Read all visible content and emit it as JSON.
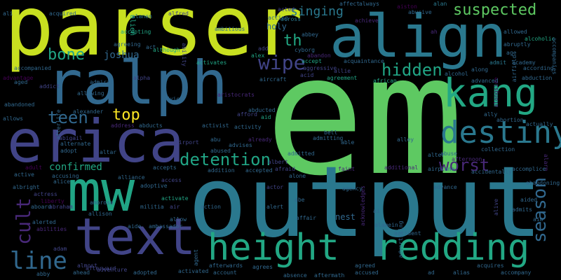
{
  "palette": {
    "background": "#000000",
    "lime": "#c8e020",
    "green": "#5ec962",
    "teal": "#2a788e",
    "cyan_green": "#21a585",
    "sea_green": "#22a884",
    "blue": "#31688e",
    "indigo": "#414487",
    "purple": "#482878",
    "dark_purple": "#440154",
    "yellow": "#fde725"
  },
  "words": [
    {
      "id": "em",
      "text": "em",
      "color": "#5ec962"
    },
    {
      "id": "output",
      "text": "output",
      "color": "#2a788e"
    },
    {
      "id": "parser",
      "text": "parser",
      "color": "#c8e020"
    },
    {
      "id": "align",
      "text": "align",
      "color": "#2a788e"
    },
    {
      "id": "ralph",
      "text": "ralph",
      "color": "#31688e"
    },
    {
      "id": "erica",
      "text": "erica",
      "color": "#414487"
    },
    {
      "id": "mw",
      "text": "mw",
      "color": "#21a585"
    },
    {
      "id": "text",
      "text": "text",
      "color": "#414487"
    },
    {
      "id": "height",
      "text": "height",
      "color": "#22a884"
    },
    {
      "id": "redding",
      "text": "redding",
      "color": "#22a884"
    },
    {
      "id": "kang",
      "text": "kang",
      "color": "#22a884"
    },
    {
      "id": "destiny",
      "text": "destiny",
      "color": "#2a788e"
    },
    {
      "id": "season",
      "text": "season",
      "color": "#31688e"
    },
    {
      "id": "cult",
      "text": "cult",
      "color": "#482878"
    },
    {
      "id": "line",
      "text": "line",
      "color": "#31688e"
    },
    {
      "id": "suspected",
      "text": "suspected",
      "color": "#5ec962"
    },
    {
      "id": "hidden",
      "text": "hidden",
      "color": "#21a585"
    },
    {
      "id": "detention",
      "text": "detention",
      "color": "#21a585"
    },
    {
      "id": "worst",
      "text": "worst",
      "color": "#482878"
    },
    {
      "id": "teen",
      "text": "teen",
      "color": "#31688e"
    },
    {
      "id": "top",
      "text": "top",
      "color": "#fde725"
    },
    {
      "id": "bone",
      "text": "bone",
      "color": "#21a585"
    },
    {
      "id": "wipe",
      "text": "wipe",
      "color": "#414487"
    },
    {
      "id": "singing",
      "text": "singing",
      "color": "#2a788e"
    },
    {
      "id": "th",
      "text": "th",
      "color": "#22a884"
    },
    {
      "id": "confirmed",
      "text": "confirmed",
      "color": "#22a884"
    },
    {
      "id": "joshua",
      "text": "joshua",
      "color": "#31688e"
    },
    {
      "id": "holy",
      "text": "holy",
      "color": "#31688e"
    },
    {
      "id": "alien",
      "text": "alien",
      "color": "#21a585"
    },
    {
      "id": "alanen",
      "text": "alanen",
      "color": "#2a788e"
    },
    {
      "id": "across",
      "text": "across",
      "color": "#2a788e"
    },
    {
      "id": "affect",
      "text": "affect",
      "color": "#31688e"
    },
    {
      "id": "always",
      "text": "always",
      "color": "#31688e"
    },
    {
      "id": "alan",
      "text": "alan",
      "color": "#2a788e"
    },
    {
      "id": "aiston",
      "text": "aiston",
      "color": "#440154"
    },
    {
      "id": "acted",
      "text": "acted",
      "color": "#414487"
    },
    {
      "id": "acting",
      "text": "acting",
      "color": "#31688e"
    },
    {
      "id": "achieve",
      "text": "achieve",
      "color": "#482878"
    },
    {
      "id": "abusive",
      "text": "abusive",
      "color": "#31688e"
    },
    {
      "id": "ah",
      "text": "ah",
      "color": "#482878"
    },
    {
      "id": "ali",
      "text": "ali",
      "color": "#31688e"
    },
    {
      "id": "acquired",
      "text": "acquired",
      "color": "#31688e"
    },
    {
      "id": "alfred",
      "text": "alfred",
      "color": "#414487"
    },
    {
      "id": "accepting",
      "text": "accepting",
      "color": "#21a585"
    },
    {
      "id": "ambitious",
      "text": "ambitious",
      "color": "#31688e"
    },
    {
      "id": "abbey",
      "text": "abbey",
      "color": "#31688e"
    },
    {
      "id": "allowed",
      "text": "allowed",
      "color": "#31688e"
    },
    {
      "id": "alcoholic",
      "text": "alcoholic",
      "color": "#22a884"
    },
    {
      "id": "abruptly",
      "text": "abruptly",
      "color": "#31688e"
    },
    {
      "id": "accompanies",
      "text": "accompanies",
      "color": "#31688e"
    },
    {
      "id": "add",
      "text": "add",
      "color": "#414487"
    },
    {
      "id": "cyborg",
      "text": "cyborg",
      "color": "#31688e"
    },
    {
      "id": "agreeing",
      "text": "agreeing",
      "color": "#31688e"
    },
    {
      "id": "act",
      "text": "act",
      "color": "#31688e"
    },
    {
      "id": "although",
      "text": "although",
      "color": "#22a884"
    },
    {
      "id": "ability",
      "text": "ability",
      "color": "#414487"
    },
    {
      "id": "alex",
      "text": "alex",
      "color": "#21a585"
    },
    {
      "id": "abandon",
      "text": "abandon",
      "color": "#482878"
    },
    {
      "id": "age",
      "text": "age",
      "color": "#31688e"
    },
    {
      "id": "accept",
      "text": "accept",
      "color": "#21a585"
    },
    {
      "id": "acquaintance",
      "text": "acquaintance",
      "color": "#31688e"
    },
    {
      "id": "admit",
      "text": "admit",
      "color": "#2a788e"
    },
    {
      "id": "academy",
      "text": "academy",
      "color": "#31688e"
    },
    {
      "id": "accompanied",
      "text": "accompanied",
      "color": "#31688e"
    },
    {
      "id": "advantage",
      "text": "advantage",
      "color": "#440154"
    },
    {
      "id": "aged",
      "text": "aged",
      "color": "#31688e"
    },
    {
      "id": "alpha",
      "text": "alpha",
      "color": "#414487"
    },
    {
      "id": "addict",
      "text": "addict",
      "color": "#414487"
    },
    {
      "id": "admiral",
      "text": "admiral",
      "color": "#31688e"
    },
    {
      "id": "activates",
      "text": "activates",
      "color": "#21a585"
    },
    {
      "id": "aggressive",
      "text": "aggressive",
      "color": "#414487"
    },
    {
      "id": "allie",
      "text": "allie",
      "color": "#414487"
    },
    {
      "id": "along",
      "text": "along",
      "color": "#31688e"
    },
    {
      "id": "airfield",
      "text": "airfield",
      "color": "#31688e"
    },
    {
      "id": "according",
      "text": "according",
      "color": "#31688e"
    },
    {
      "id": "advanced",
      "text": "advanced",
      "color": "#31688e"
    },
    {
      "id": "alcohol",
      "text": "alcohol",
      "color": "#31688e"
    },
    {
      "id": "acid",
      "text": "acid",
      "color": "#414487"
    },
    {
      "id": "agreement",
      "text": "agreement",
      "color": "#21a585"
    },
    {
      "id": "aircraft",
      "text": "aircraft",
      "color": "#31688e"
    },
    {
      "id": "abduction",
      "text": "abduction",
      "color": "#31688e"
    },
    {
      "id": "alongside",
      "text": "alongside",
      "color": "#440154"
    },
    {
      "id": "african",
      "text": "african",
      "color": "#21a585"
    },
    {
      "id": "allowing",
      "text": "allowing",
      "color": "#31688e"
    },
    {
      "id": "advice",
      "text": "advice",
      "color": "#31688e"
    },
    {
      "id": "abandoned",
      "text": "abandoned",
      "color": "#31688e"
    },
    {
      "id": "alexander",
      "text": "alexander",
      "color": "#31688e"
    },
    {
      "id": "aristocrats",
      "text": "aristocrats",
      "color": "#482878"
    },
    {
      "id": "abducted",
      "text": "abducted",
      "color": "#31688e"
    },
    {
      "id": "afford",
      "text": "afford",
      "color": "#414487"
    },
    {
      "id": "aid",
      "text": "aid",
      "color": "#21a585"
    },
    {
      "id": "ally",
      "text": "ally",
      "color": "#31688e"
    },
    {
      "id": "allows",
      "text": "allows",
      "color": "#31688e"
    },
    {
      "id": "afterlife",
      "text": "afterlife",
      "color": "#31688e"
    },
    {
      "id": "address",
      "text": "address",
      "color": "#482878"
    },
    {
      "id": "abducts",
      "text": "abducts",
      "color": "#31688e"
    },
    {
      "id": "activity",
      "text": "activity",
      "color": "#31688e"
    },
    {
      "id": "activist",
      "text": "activist",
      "color": "#31688e"
    },
    {
      "id": "already",
      "text": "already",
      "color": "#482878"
    },
    {
      "id": "bell",
      "text": "bell",
      "color": "#31688e"
    },
    {
      "id": "abortion",
      "text": "abortion",
      "color": "#31688e"
    },
    {
      "id": "actually",
      "text": "actually",
      "color": "#31688e"
    },
    {
      "id": "abigail",
      "text": "abigail",
      "color": "#414487"
    },
    {
      "id": "alternate",
      "text": "alternate",
      "color": "#31688e"
    },
    {
      "id": "adopt",
      "text": "adopt",
      "color": "#31688e"
    },
    {
      "id": "abu",
      "text": "abu",
      "color": "#31688e"
    },
    {
      "id": "advises",
      "text": "advises",
      "color": "#31688e"
    },
    {
      "id": "admitting",
      "text": "admitting",
      "color": "#31688e"
    },
    {
      "id": "able",
      "text": "able",
      "color": "#31688e"
    },
    {
      "id": "alley",
      "text": "alley",
      "color": "#31688e"
    },
    {
      "id": "airport",
      "text": "airport",
      "color": "#414487"
    },
    {
      "id": "admitted",
      "text": "admitted",
      "color": "#31688e"
    },
    {
      "id": "abuse",
      "text": "abuse",
      "color": "#31688e"
    },
    {
      "id": "alter",
      "text": "alter",
      "color": "#31688e"
    },
    {
      "id": "altar",
      "text": "altar",
      "color": "#31688e"
    },
    {
      "id": "abused",
      "text": "abused",
      "color": "#31688e"
    },
    {
      "id": "afternoon",
      "text": "afternoon",
      "color": "#482878"
    },
    {
      "id": "alarm",
      "text": "alarm",
      "color": "#482878"
    },
    {
      "id": "collection",
      "text": "collection",
      "color": "#31688e"
    },
    {
      "id": "albert",
      "text": "albert",
      "color": "#414487"
    },
    {
      "id": "adult",
      "text": "adult",
      "color": "#440154"
    },
    {
      "id": "accepts",
      "text": "accepts",
      "color": "#31688e"
    },
    {
      "id": "addition",
      "text": "addition",
      "color": "#31688e"
    },
    {
      "id": "accepted",
      "text": "accepted",
      "color": "#31688e"
    },
    {
      "id": "afraid",
      "text": "afraid",
      "color": "#414487"
    },
    {
      "id": "additional",
      "text": "additional",
      "color": "#482878"
    },
    {
      "id": "airplane",
      "text": "airplane",
      "color": "#31688e"
    },
    {
      "id": "accidentally",
      "text": "accidentally",
      "color": "#31688e"
    },
    {
      "id": "accomplice",
      "text": "accomplice",
      "color": "#31688e"
    },
    {
      "id": "active",
      "text": "active",
      "color": "#31688e"
    },
    {
      "id": "accusing",
      "text": "accusing",
      "color": "#31688e"
    },
    {
      "id": "alliance",
      "text": "alliance",
      "color": "#31688e"
    },
    {
      "id": "access",
      "text": "access",
      "color": "#414487"
    },
    {
      "id": "alone",
      "text": "alone",
      "color": "#31688e"
    },
    {
      "id": "faint",
      "text": "faint",
      "color": "#482878"
    },
    {
      "id": "albright",
      "text": "albright",
      "color": "#31688e"
    },
    {
      "id": "alice",
      "text": "alice",
      "color": "#31688e"
    },
    {
      "id": "actor",
      "text": "actor",
      "color": "#414487"
    },
    {
      "id": "agency",
      "text": "agency",
      "color": "#31688e"
    },
    {
      "id": "advance",
      "text": "advance",
      "color": "#31688e"
    },
    {
      "id": "abandoning",
      "text": "abandoning",
      "color": "#31688e"
    },
    {
      "id": "actress",
      "text": "actress",
      "color": "#414487"
    },
    {
      "id": "adoptive",
      "text": "adoptive",
      "color": "#31688e"
    },
    {
      "id": "activate",
      "text": "activate",
      "color": "#21a585"
    },
    {
      "id": "abe",
      "text": "abe",
      "color": "#31688e"
    },
    {
      "id": "aided",
      "text": "aided",
      "color": "#31688e"
    },
    {
      "id": "liberty",
      "text": "liberty",
      "color": "#440154"
    },
    {
      "id": "aboard",
      "text": "aboard",
      "color": "#31688e"
    },
    {
      "id": "abraham",
      "text": "abraham",
      "color": "#414487"
    },
    {
      "id": "ambrose",
      "text": "ambrose",
      "color": "#31688e"
    },
    {
      "id": "militia",
      "text": "militia",
      "color": "#31688e"
    },
    {
      "id": "air",
      "text": "air",
      "color": "#414487"
    },
    {
      "id": "action",
      "text": "action",
      "color": "#31688e"
    },
    {
      "id": "alert",
      "text": "alert",
      "color": "#31688e"
    },
    {
      "id": "acknowledges",
      "text": "acknowledges",
      "color": "#482878"
    },
    {
      "id": "ai",
      "text": "ai",
      "color": "#31688e"
    },
    {
      "id": "alive",
      "text": "alive",
      "color": "#414487"
    },
    {
      "id": "admits",
      "text": "admits",
      "color": "#31688e"
    },
    {
      "id": "aim",
      "text": "aim",
      "color": "#31688e"
    },
    {
      "id": "allison",
      "text": "allison",
      "color": "#31688e"
    },
    {
      "id": "aide",
      "text": "aide",
      "color": "#31688e"
    },
    {
      "id": "ambassador",
      "text": "ambassador",
      "color": "#31688e"
    },
    {
      "id": "allow",
      "text": "allow",
      "color": "#31688e"
    },
    {
      "id": "affair",
      "text": "affair",
      "color": "#31688e"
    },
    {
      "id": "nest",
      "text": "nest",
      "color": "#31688e"
    },
    {
      "id": "alerted",
      "text": "alerted",
      "color": "#31688e"
    },
    {
      "id": "alamein",
      "text": "alamein",
      "color": "#31688e"
    },
    {
      "id": "accident",
      "text": "accident",
      "color": "#31688e"
    },
    {
      "id": "advertising",
      "text": "advertising",
      "color": "#31688e"
    },
    {
      "id": "abilities",
      "text": "abilities",
      "color": "#482878"
    },
    {
      "id": "adam",
      "text": "adam",
      "color": "#414487"
    },
    {
      "id": "afterward",
      "text": "afterward",
      "color": "#414487"
    },
    {
      "id": "almost",
      "text": "almost",
      "color": "#414487"
    },
    {
      "id": "adventure",
      "text": "adventure",
      "color": "#414487"
    },
    {
      "id": "activated",
      "text": "activated",
      "color": "#31688e"
    },
    {
      "id": "agent",
      "text": "agent",
      "color": "#31688e"
    },
    {
      "id": "afterwards",
      "text": "afterwards",
      "color": "#31688e"
    },
    {
      "id": "agrees",
      "text": "agrees",
      "color": "#31688e"
    },
    {
      "id": "agreed",
      "text": "agreed",
      "color": "#31688e"
    },
    {
      "id": "alias",
      "text": "alias",
      "color": "#31688e"
    },
    {
      "id": "acquires",
      "text": "acquires",
      "color": "#31688e"
    },
    {
      "id": "ahead",
      "text": "ahead",
      "color": "#31688e"
    },
    {
      "id": "adopted",
      "text": "adopted",
      "color": "#31688e"
    },
    {
      "id": "account",
      "text": "account",
      "color": "#31688e"
    },
    {
      "id": "absence",
      "text": "absence",
      "color": "#31688e"
    },
    {
      "id": "aftermath",
      "text": "aftermath",
      "color": "#31688e"
    },
    {
      "id": "accused",
      "text": "accused",
      "color": "#31688e"
    },
    {
      "id": "ad",
      "text": "ad",
      "color": "#31688e"
    },
    {
      "id": "accompany",
      "text": "accompany",
      "color": "#31688e"
    },
    {
      "id": "abby",
      "text": "abby",
      "color": "#31688e"
    }
  ]
}
